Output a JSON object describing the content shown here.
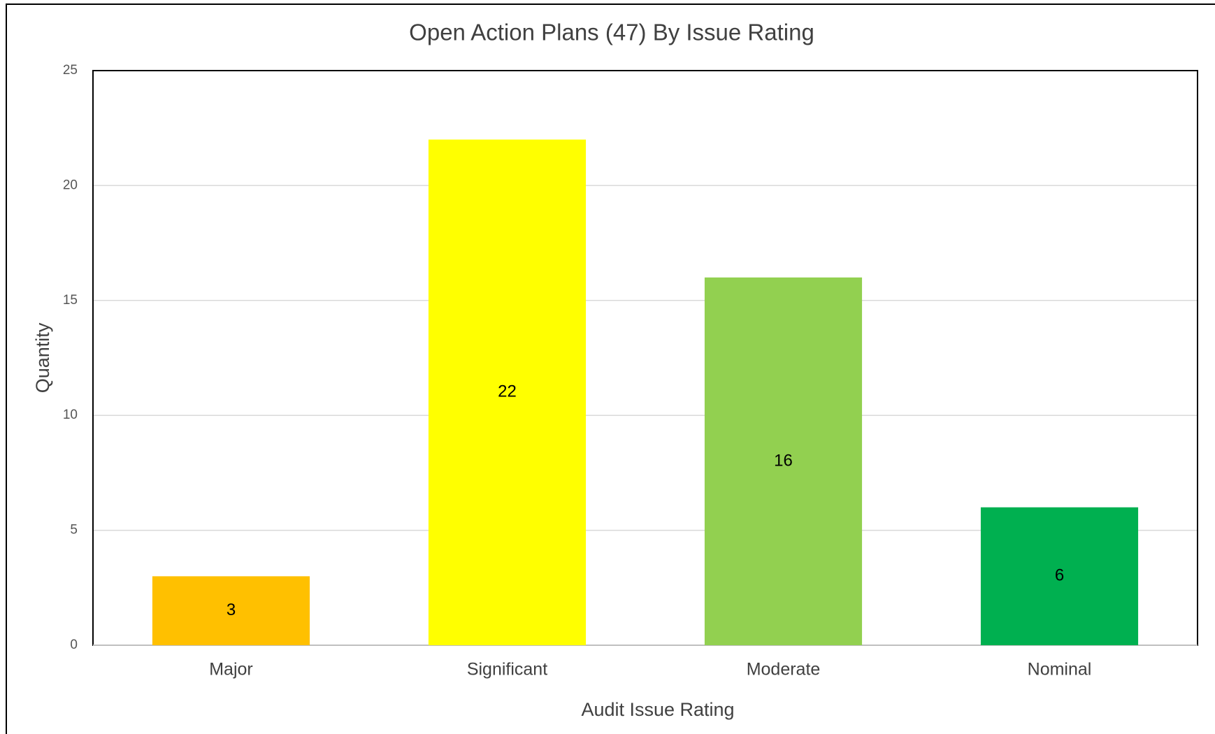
{
  "chart_data": {
    "type": "bar",
    "title": "Open Action Plans (47) By Issue Rating",
    "x_label": "Audit Issue Rating",
    "y_label": "Quantity",
    "categories": [
      "Major",
      "Significant",
      "Moderate",
      "Nominal"
    ],
    "values": [
      3,
      22,
      16,
      6
    ],
    "colors": [
      "#ffc000",
      "#ffff00",
      "#92d050",
      "#00b050"
    ],
    "ylim": [
      0,
      25
    ],
    "yticks": [
      0,
      5,
      10,
      15,
      20,
      25
    ],
    "grid": true
  }
}
